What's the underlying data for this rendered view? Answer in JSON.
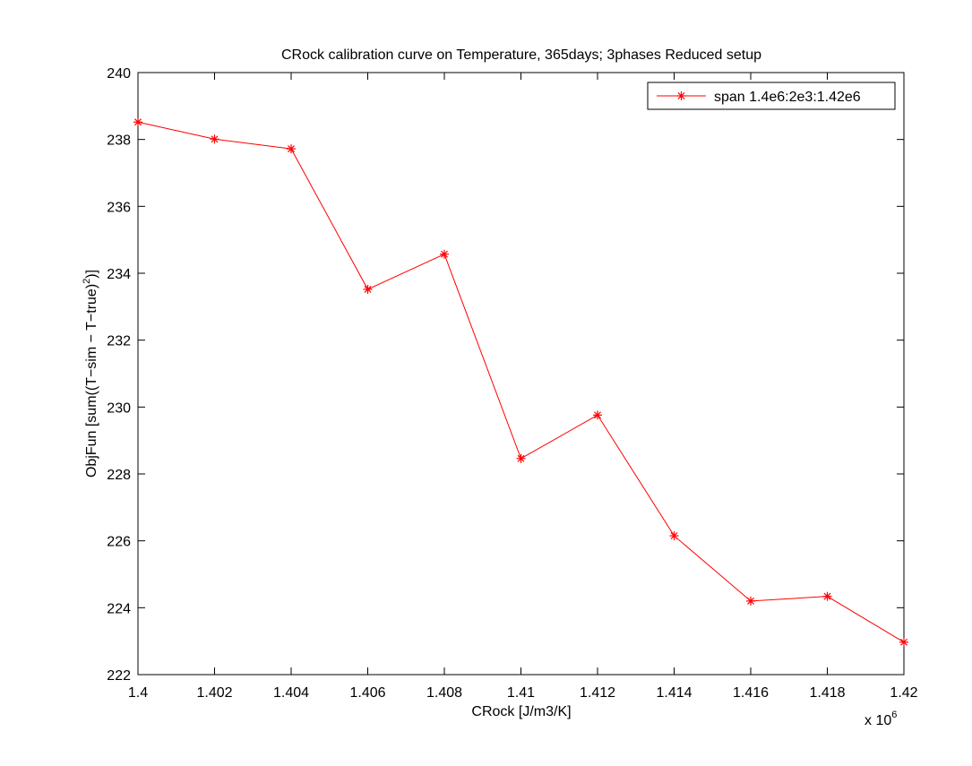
{
  "chart_data": {
    "type": "line",
    "title": "CRock calibration curve on Temperature, 365days; 3phases Reduced setup",
    "xlabel": "CRock [J/m3/K]",
    "ylabel_prefix": "ObjFun [sum((T−sim − T−true)",
    "ylabel_sup": "2",
    "ylabel_suffix": ")]",
    "x_multiplier_base": "x 10",
    "x_multiplier_exp": "6",
    "xlim": [
      1.4,
      1.42
    ],
    "ylim": [
      222,
      240
    ],
    "xticks": [
      1.4,
      1.402,
      1.404,
      1.406,
      1.408,
      1.41,
      1.412,
      1.414,
      1.416,
      1.418,
      1.42
    ],
    "xtick_labels": [
      "1.4",
      "1.402",
      "1.404",
      "1.406",
      "1.408",
      "1.41",
      "1.412",
      "1.414",
      "1.416",
      "1.418",
      "1.42"
    ],
    "yticks": [
      222,
      224,
      226,
      228,
      230,
      232,
      234,
      236,
      238,
      240
    ],
    "ytick_labels": [
      "222",
      "224",
      "226",
      "228",
      "230",
      "232",
      "234",
      "236",
      "238",
      "240"
    ],
    "grid": false,
    "legend_position": "top-right",
    "series": [
      {
        "name": "span 1.4e6:2e3:1.42e6",
        "color": "#ff0000",
        "marker": "asterisk",
        "x": [
          1.4,
          1.402,
          1.404,
          1.406,
          1.408,
          1.41,
          1.412,
          1.414,
          1.416,
          1.418,
          1.42
        ],
        "y": [
          238.52,
          238.01,
          237.72,
          233.52,
          234.57,
          228.46,
          229.76,
          226.15,
          224.2,
          224.34,
          222.97
        ]
      }
    ]
  }
}
